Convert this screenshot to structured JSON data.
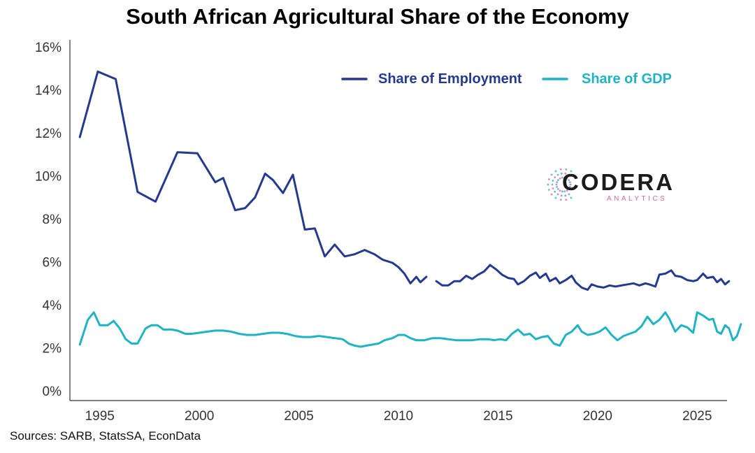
{
  "chart_data": {
    "type": "line",
    "title": "South African Agricultural Share of the Economy",
    "xlabel": "",
    "ylabel": "",
    "xlim": [
      1993.5,
      2026.5
    ],
    "ylim": [
      0,
      16
    ],
    "x_ticks": [
      1995,
      2000,
      2005,
      2010,
      2015,
      2020,
      2025
    ],
    "x_tick_labels": [
      "1995",
      "2000",
      "2005",
      "2010",
      "2015",
      "2020",
      "2025"
    ],
    "y_ticks": [
      0,
      2,
      4,
      6,
      8,
      10,
      12,
      14,
      16
    ],
    "y_tick_labels": [
      "0%",
      "2%",
      "4%",
      "6%",
      "8%",
      "10%",
      "12%",
      "14%",
      "16%"
    ],
    "grid": false,
    "legend_position": "top-right",
    "series": [
      {
        "name": "Share of Employment",
        "color": "#253a8e",
        "segments": [
          [
            [
              1994.0,
              11.8
            ],
            [
              1994.9,
              14.85
            ],
            [
              1995.8,
              14.5
            ],
            [
              1996.9,
              9.25
            ],
            [
              1997.8,
              8.8
            ],
            [
              1998.9,
              11.1
            ],
            [
              1999.9,
              11.05
            ],
            [
              2000.8,
              9.7
            ],
            [
              2001.2,
              9.9
            ],
            [
              2001.8,
              8.4
            ],
            [
              2002.3,
              8.5
            ],
            [
              2002.8,
              9.0
            ],
            [
              2003.3,
              10.1
            ],
            [
              2003.7,
              9.8
            ],
            [
              2004.2,
              9.2
            ],
            [
              2004.7,
              10.05
            ],
            [
              2005.3,
              7.5
            ],
            [
              2005.8,
              7.55
            ],
            [
              2006.3,
              6.25
            ],
            [
              2006.8,
              6.8
            ],
            [
              2007.3,
              6.25
            ],
            [
              2007.8,
              6.35
            ],
            [
              2008.3,
              6.55
            ],
            [
              2008.8,
              6.35
            ],
            [
              2009.2,
              6.1
            ],
            [
              2009.7,
              5.95
            ],
            [
              2010.0,
              5.75
            ],
            [
              2010.3,
              5.45
            ],
            [
              2010.6,
              5.0
            ],
            [
              2010.9,
              5.3
            ],
            [
              2011.1,
              5.05
            ],
            [
              2011.4,
              5.3
            ]
          ],
          [
            [
              2011.9,
              5.1
            ],
            [
              2012.2,
              4.9
            ],
            [
              2012.5,
              4.9
            ],
            [
              2012.8,
              5.1
            ],
            [
              2013.1,
              5.1
            ],
            [
              2013.4,
              5.35
            ],
            [
              2013.7,
              5.2
            ],
            [
              2014.0,
              5.4
            ],
            [
              2014.3,
              5.55
            ],
            [
              2014.6,
              5.85
            ],
            [
              2014.9,
              5.65
            ],
            [
              2015.2,
              5.4
            ],
            [
              2015.5,
              5.25
            ],
            [
              2015.8,
              5.2
            ],
            [
              2016.0,
              4.95
            ],
            [
              2016.3,
              5.1
            ],
            [
              2016.6,
              5.35
            ],
            [
              2016.9,
              5.5
            ],
            [
              2017.1,
              5.25
            ],
            [
              2017.4,
              5.45
            ],
            [
              2017.6,
              5.1
            ],
            [
              2017.9,
              5.25
            ],
            [
              2018.1,
              5.0
            ],
            [
              2018.4,
              5.15
            ],
            [
              2018.7,
              5.35
            ],
            [
              2018.9,
              5.05
            ],
            [
              2019.2,
              4.8
            ],
            [
              2019.5,
              4.7
            ],
            [
              2019.7,
              4.95
            ],
            [
              2020.0,
              4.85
            ],
            [
              2020.3,
              4.8
            ],
            [
              2020.6,
              4.9
            ],
            [
              2020.9,
              4.85
            ],
            [
              2021.2,
              4.9
            ],
            [
              2021.5,
              4.95
            ],
            [
              2021.8,
              5.0
            ],
            [
              2022.1,
              4.9
            ],
            [
              2022.4,
              5.0
            ],
            [
              2022.6,
              4.95
            ],
            [
              2022.9,
              4.85
            ],
            [
              2023.1,
              5.4
            ],
            [
              2023.4,
              5.45
            ],
            [
              2023.7,
              5.6
            ],
            [
              2023.9,
              5.35
            ],
            [
              2024.2,
              5.3
            ],
            [
              2024.5,
              5.15
            ],
            [
              2024.8,
              5.1
            ],
            [
              2025.0,
              5.15
            ],
            [
              2025.3,
              5.45
            ],
            [
              2025.5,
              5.25
            ],
            [
              2025.8,
              5.3
            ],
            [
              2026.0,
              5.05
            ],
            [
              2026.2,
              5.2
            ],
            [
              2026.4,
              4.95
            ],
            [
              2026.6,
              5.1
            ]
          ]
        ]
      },
      {
        "name": "Share of GDP",
        "color": "#1fb4c4",
        "segments": [
          [
            [
              1994.0,
              2.15
            ],
            [
              1994.4,
              3.3
            ],
            [
              1994.7,
              3.65
            ],
            [
              1995.0,
              3.05
            ],
            [
              1995.4,
              3.05
            ],
            [
              1995.7,
              3.25
            ],
            [
              1996.0,
              2.9
            ],
            [
              1996.3,
              2.4
            ],
            [
              1996.6,
              2.2
            ],
            [
              1996.9,
              2.2
            ],
            [
              1997.3,
              2.9
            ],
            [
              1997.6,
              3.05
            ],
            [
              1997.9,
              3.05
            ],
            [
              1998.2,
              2.85
            ],
            [
              1998.6,
              2.85
            ],
            [
              1998.9,
              2.8
            ],
            [
              1999.3,
              2.65
            ],
            [
              1999.6,
              2.65
            ],
            [
              2000.0,
              2.7
            ],
            [
              2000.4,
              2.75
            ],
            [
              2000.8,
              2.8
            ],
            [
              2001.2,
              2.8
            ],
            [
              2001.6,
              2.75
            ],
            [
              2002.0,
              2.65
            ],
            [
              2002.4,
              2.6
            ],
            [
              2002.8,
              2.6
            ],
            [
              2003.2,
              2.65
            ],
            [
              2003.6,
              2.7
            ],
            [
              2004.0,
              2.7
            ],
            [
              2004.4,
              2.65
            ],
            [
              2004.8,
              2.55
            ],
            [
              2005.2,
              2.5
            ],
            [
              2005.6,
              2.5
            ],
            [
              2006.0,
              2.55
            ],
            [
              2006.4,
              2.5
            ],
            [
              2006.8,
              2.45
            ],
            [
              2007.2,
              2.4
            ],
            [
              2007.5,
              2.2
            ],
            [
              2007.8,
              2.1
            ],
            [
              2008.1,
              2.05
            ],
            [
              2008.4,
              2.1
            ],
            [
              2008.7,
              2.15
            ],
            [
              2009.0,
              2.2
            ],
            [
              2009.3,
              2.35
            ],
            [
              2009.7,
              2.45
            ],
            [
              2010.0,
              2.6
            ],
            [
              2010.3,
              2.6
            ],
            [
              2010.6,
              2.45
            ],
            [
              2010.9,
              2.35
            ],
            [
              2011.3,
              2.35
            ],
            [
              2011.7,
              2.45
            ],
            [
              2012.1,
              2.45
            ],
            [
              2012.5,
              2.4
            ],
            [
              2012.9,
              2.35
            ],
            [
              2013.3,
              2.35
            ],
            [
              2013.7,
              2.35
            ],
            [
              2014.1,
              2.4
            ],
            [
              2014.5,
              2.4
            ],
            [
              2014.8,
              2.35
            ],
            [
              2015.1,
              2.4
            ],
            [
              2015.4,
              2.35
            ],
            [
              2015.7,
              2.65
            ],
            [
              2016.0,
              2.85
            ],
            [
              2016.3,
              2.6
            ],
            [
              2016.6,
              2.65
            ],
            [
              2016.9,
              2.4
            ],
            [
              2017.2,
              2.5
            ],
            [
              2017.5,
              2.55
            ],
            [
              2017.8,
              2.2
            ],
            [
              2018.1,
              2.1
            ],
            [
              2018.4,
              2.6
            ],
            [
              2018.7,
              2.75
            ],
            [
              2019.0,
              3.05
            ],
            [
              2019.2,
              2.75
            ],
            [
              2019.5,
              2.6
            ],
            [
              2019.8,
              2.65
            ],
            [
              2020.1,
              2.75
            ],
            [
              2020.4,
              2.95
            ],
            [
              2020.7,
              2.6
            ],
            [
              2021.0,
              2.35
            ],
            [
              2021.3,
              2.55
            ],
            [
              2021.6,
              2.65
            ],
            [
              2021.9,
              2.75
            ],
            [
              2022.2,
              3.0
            ],
            [
              2022.5,
              3.45
            ],
            [
              2022.8,
              3.1
            ],
            [
              2023.1,
              3.3
            ],
            [
              2023.4,
              3.65
            ],
            [
              2023.6,
              3.35
            ],
            [
              2023.9,
              2.75
            ],
            [
              2024.2,
              3.05
            ],
            [
              2024.5,
              2.95
            ],
            [
              2024.8,
              2.7
            ],
            [
              2025.0,
              3.65
            ],
            [
              2025.3,
              3.5
            ],
            [
              2025.6,
              3.3
            ],
            [
              2025.8,
              3.35
            ],
            [
              2026.0,
              2.75
            ],
            [
              2026.2,
              2.65
            ],
            [
              2026.4,
              3.05
            ],
            [
              2026.6,
              2.9
            ],
            [
              2026.8,
              2.35
            ],
            [
              2027.0,
              2.55
            ],
            [
              2027.2,
              3.1
            ]
          ]
        ]
      }
    ],
    "source": "Sources: SARB, StatsSA, EconData"
  },
  "logo": {
    "word": "CODERA",
    "sub": "ANALYTICS",
    "accent_colors": [
      "#d46b9a",
      "#7b8fd0",
      "#22b6c6"
    ]
  }
}
